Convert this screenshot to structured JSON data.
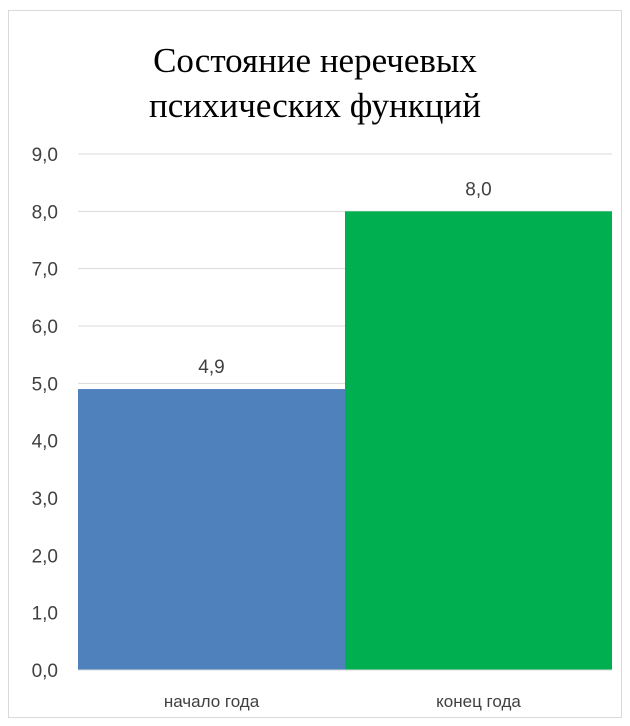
{
  "chart_data": {
    "type": "bar",
    "title_lines": [
      "Состояние неречевых",
      "психических функций"
    ],
    "categories": [
      "начало года",
      "конец года"
    ],
    "values": [
      4.9,
      8.0
    ],
    "value_labels": [
      "4,9",
      "8,0"
    ],
    "colors": [
      "#4f81bd",
      "#00b050"
    ],
    "ylim": [
      0,
      9
    ],
    "yticks": [
      "0,0",
      "1,0",
      "2,0",
      "3,0",
      "4,0",
      "5,0",
      "6,0",
      "7,0",
      "8,0",
      "9,0"
    ],
    "xlabel": "",
    "ylabel": "",
    "grid": true,
    "legend": "none"
  }
}
